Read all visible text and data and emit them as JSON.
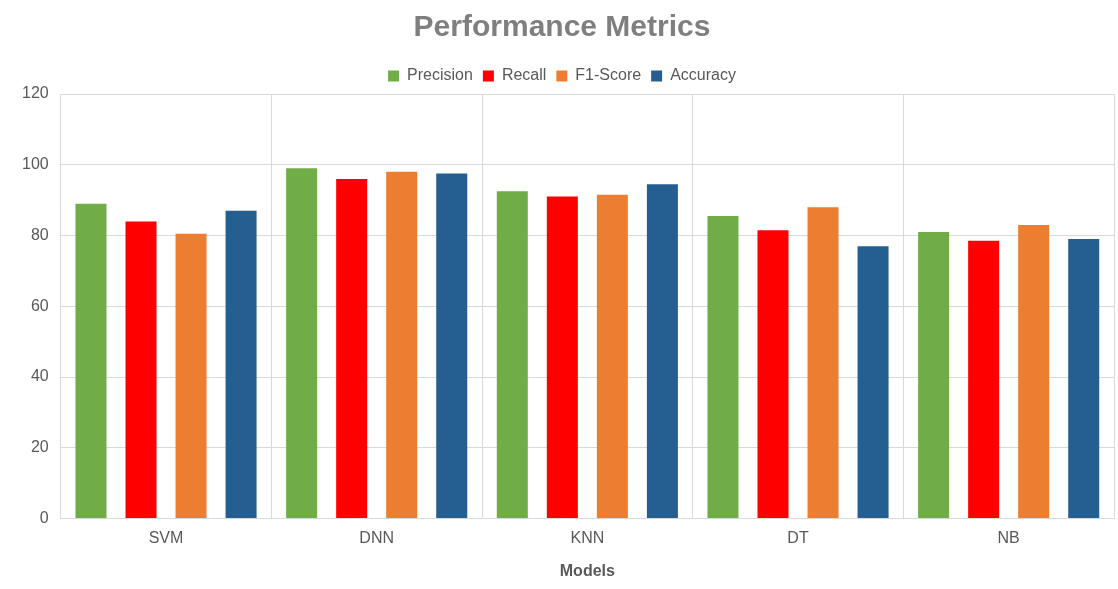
{
  "chart_data": {
    "type": "bar",
    "title": "Performance Metrics",
    "xlabel": "Models",
    "categories": [
      "SVM",
      "DNN",
      "KNN",
      "DT",
      "NB"
    ],
    "series": [
      {
        "name": "Precision",
        "color": "#70ad47",
        "values": [
          89,
          99,
          92.5,
          85.5,
          81
        ]
      },
      {
        "name": "Recall",
        "color": "#ff0000",
        "values": [
          84,
          96,
          91,
          81.5,
          78.5
        ]
      },
      {
        "name": "F1-Score",
        "color": "#ed7d31",
        "values": [
          80.5,
          98,
          91.5,
          88,
          83
        ]
      },
      {
        "name": "Accuracy",
        "color": "#255e91",
        "values": [
          87,
          97.5,
          94.5,
          77,
          79
        ]
      }
    ],
    "ylim": [
      0,
      120
    ],
    "yticks": [
      0,
      20,
      40,
      60,
      80,
      100,
      120
    ],
    "grid": true,
    "legend": "top"
  }
}
